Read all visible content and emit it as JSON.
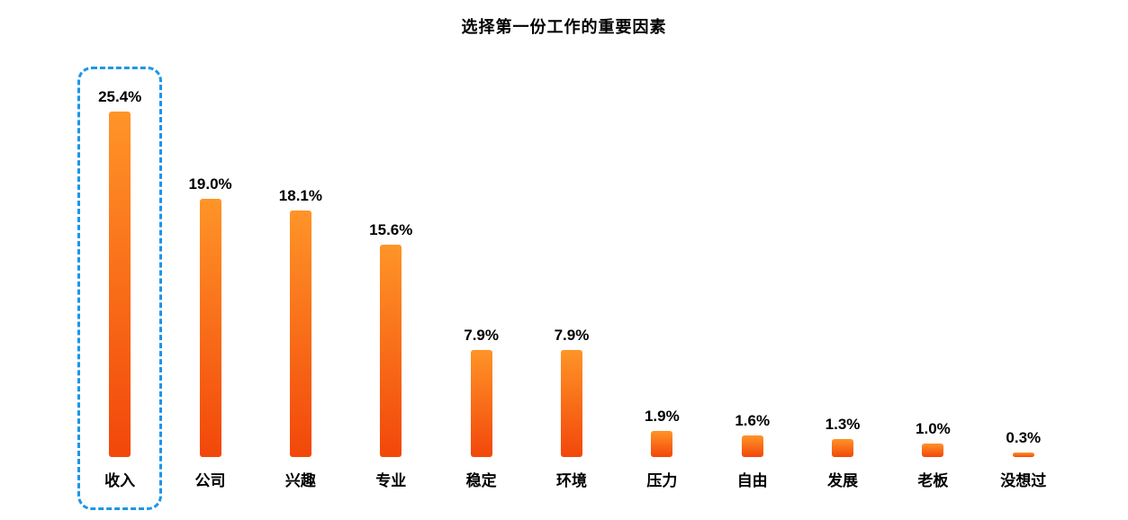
{
  "title": "选择第一份工作的重要因素",
  "chart_data": {
    "type": "bar",
    "title": "选择第一份工作的重要因素",
    "categories": [
      "收入",
      "公司",
      "兴趣",
      "专业",
      "稳定",
      "环境",
      "压力",
      "自由",
      "发展",
      "老板",
      "没想过"
    ],
    "values": [
      25.4,
      19.0,
      18.1,
      15.6,
      7.9,
      7.9,
      1.9,
      1.6,
      1.3,
      1.0,
      0.3
    ],
    "value_labels": [
      "25.4%",
      "19.0%",
      "18.1%",
      "15.6%",
      "7.9%",
      "7.9%",
      "1.9%",
      "1.6%",
      "1.3%",
      "1.0%",
      "0.3%"
    ],
    "xlabel": "",
    "ylabel": "",
    "ylim": [
      0,
      27
    ],
    "grid": false,
    "legend": false,
    "axes_visible": false,
    "highlighted_category": "收入",
    "bar_gradient_top": "#ff9428",
    "bar_gradient_bottom": "#f2470a",
    "highlight_border_color": "#1b96e8",
    "background_color": "#ffffff",
    "text_color": "#000000"
  }
}
